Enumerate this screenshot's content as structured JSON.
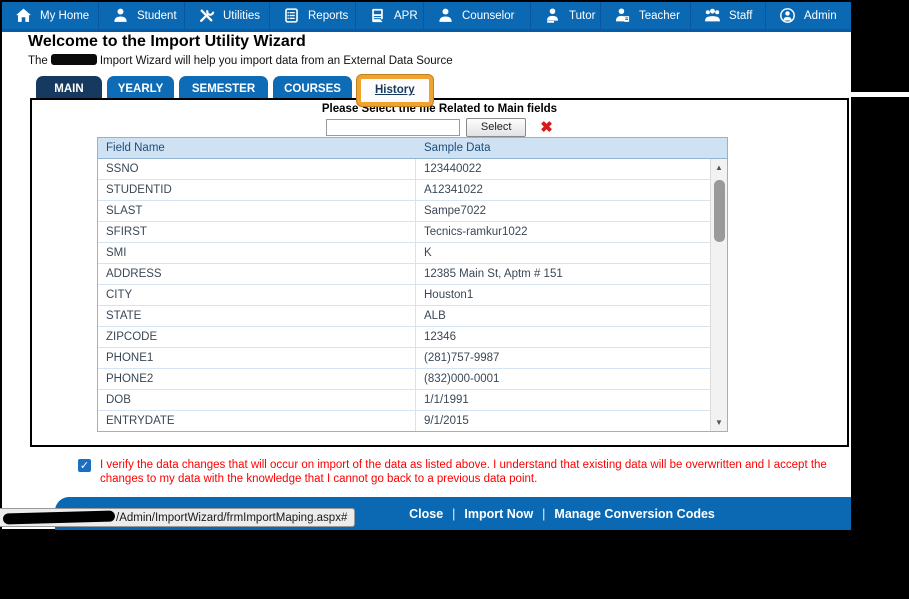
{
  "nav": {
    "items": [
      {
        "name": "my-home",
        "label": "My Home",
        "icon": "home-icon"
      },
      {
        "name": "student",
        "label": "Student",
        "icon": "student-icon"
      },
      {
        "name": "utilities",
        "label": "Utilities",
        "icon": "utilities-icon"
      },
      {
        "name": "reports",
        "label": "Reports",
        "icon": "reports-icon"
      },
      {
        "name": "apr",
        "label": "APR",
        "icon": "apr-icon"
      },
      {
        "name": "counselor",
        "label": "Counselor",
        "icon": "counselor-icon"
      },
      {
        "name": "tutor",
        "label": "Tutor",
        "icon": "tutor-icon"
      },
      {
        "name": "teacher",
        "label": "Teacher",
        "icon": "teacher-icon"
      },
      {
        "name": "staff",
        "label": "Staff",
        "icon": "staff-icon"
      },
      {
        "name": "admin",
        "label": "Admin",
        "icon": "admin-icon"
      }
    ]
  },
  "page": {
    "title": "Welcome to the Import Utility Wizard",
    "subtitle_prefix": "The",
    "subtitle_suffix": "Import Wizard will help you import data from an External Data Source"
  },
  "tabs": [
    {
      "name": "main",
      "label": "MAIN",
      "active": true,
      "highlighted": false
    },
    {
      "name": "yearly",
      "label": "YEARLY",
      "active": false,
      "highlighted": false
    },
    {
      "name": "semester",
      "label": "SEMESTER",
      "active": false,
      "highlighted": false
    },
    {
      "name": "courses",
      "label": "COURSES",
      "active": false,
      "highlighted": false
    },
    {
      "name": "history",
      "label": "History",
      "active": false,
      "highlighted": true
    }
  ],
  "file_select": {
    "instruction": "Please Select the file Related to Main fields",
    "input_value": "",
    "button_label": "Select",
    "clear_icon": "red-x-icon",
    "clear_glyph": "✖"
  },
  "table": {
    "columns": [
      "Field Name",
      "Sample Data"
    ],
    "rows": [
      [
        "SSNO",
        "123440022"
      ],
      [
        "STUDENTID",
        "A12341022"
      ],
      [
        "SLAST",
        "Sampe7022"
      ],
      [
        "SFIRST",
        "Tecnics-ramkur1022"
      ],
      [
        "SMI",
        "K"
      ],
      [
        "ADDRESS",
        "12385 Main St, Aptm # 151"
      ],
      [
        "CITY",
        "Houston1"
      ],
      [
        "STATE",
        "ALB"
      ],
      [
        "ZIPCODE",
        "12346"
      ],
      [
        "PHONE1",
        "(281)757-9987"
      ],
      [
        "PHONE2",
        "(832)000-0001"
      ],
      [
        "DOB",
        "1/1/1991"
      ],
      [
        "ENTRYDATE",
        "9/1/2015"
      ]
    ]
  },
  "verification": {
    "checked": true,
    "check_glyph": "✓",
    "text": "I verify the data changes that will occur on import of the data as listed above. I understand that existing data will be overwritten and I accept the changes to my data with the knowledge that I cannot go back to a previous data point."
  },
  "footer": {
    "links": [
      {
        "name": "close",
        "label": "Close"
      },
      {
        "name": "import-now",
        "label": "Import Now"
      },
      {
        "name": "manage-conversion-codes",
        "label": "Manage Conversion Codes"
      }
    ],
    "separator": "|"
  },
  "status_bar": {
    "url_path": "/Admin/ImportWizard/frmImportMaping.aspx#"
  },
  "colors": {
    "nav_blue": "#0b69b4",
    "nav_divider": "#0a55a0",
    "nav_border": "#0a5aa4",
    "tab_active_navy": "#15395f",
    "tab_blue": "#0e6cb6",
    "table_header_bg": "#cfe2f4",
    "table_header_text": "#1f4e79",
    "row_text": "#3a4856",
    "row_border": "#d5e4f2",
    "alert_red": "#ff0000",
    "highlight_orange": "#f0a232",
    "footer_blue": "#0b69b4",
    "checkbox_blue": "#1a6fc0"
  }
}
